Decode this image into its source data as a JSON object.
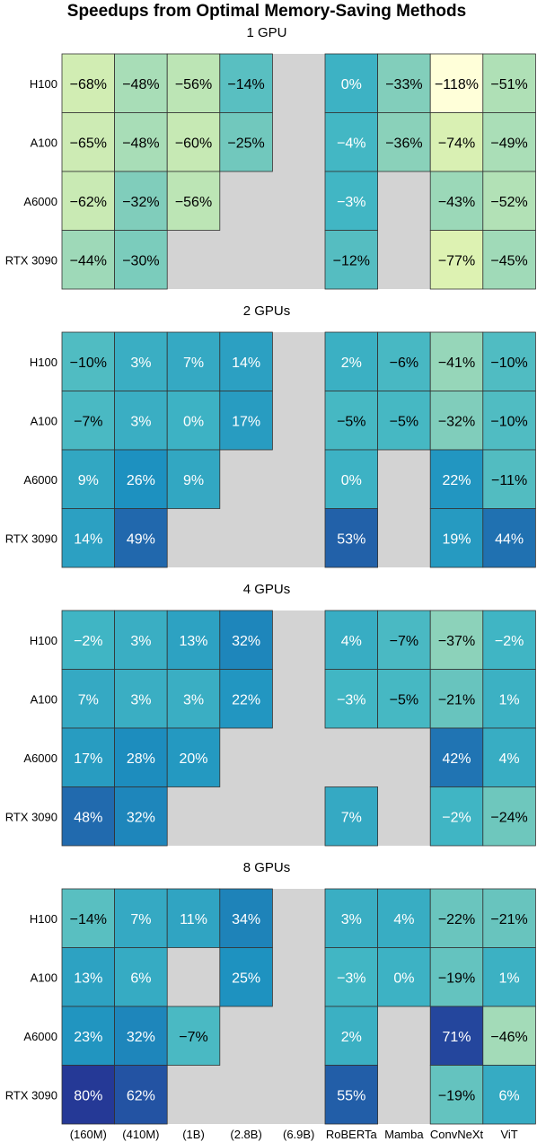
{
  "chart_data": {
    "type": "heatmap",
    "title": "Speedups from Optimal Memory-Saving Methods",
    "columns": [
      "(160M)",
      "(410M)",
      "(1B)",
      "(2.8B)",
      "(6.9B)",
      "RoBERTa",
      "Mamba",
      "ConvNeXt",
      "ViT"
    ],
    "rows": [
      "H100",
      "A100",
      "A6000",
      "RTX 3090"
    ],
    "missing_color": "#d3d3d3",
    "colormap": "YlGnBu",
    "value_range": [
      -118,
      80
    ],
    "unit": "%",
    "panels": [
      {
        "subtitle": "1 GPU",
        "values": [
          [
            -68,
            -48,
            -56,
            -14,
            null,
            0,
            -33,
            -118,
            -51
          ],
          [
            -65,
            -48,
            -60,
            -25,
            null,
            -4,
            -36,
            -74,
            -49
          ],
          [
            -62,
            -32,
            -56,
            null,
            null,
            -3,
            null,
            -43,
            -52
          ],
          [
            -44,
            -30,
            null,
            null,
            null,
            -12,
            null,
            -77,
            -45
          ]
        ]
      },
      {
        "subtitle": "2 GPUs",
        "values": [
          [
            -10,
            3,
            7,
            14,
            null,
            2,
            -6,
            -41,
            -10
          ],
          [
            -7,
            3,
            0,
            17,
            null,
            -5,
            -5,
            -32,
            -10
          ],
          [
            9,
            26,
            9,
            null,
            null,
            0,
            null,
            22,
            -11
          ],
          [
            14,
            49,
            null,
            null,
            null,
            53,
            null,
            19,
            44
          ]
        ]
      },
      {
        "subtitle": "4 GPUs",
        "values": [
          [
            -2,
            3,
            13,
            32,
            null,
            4,
            -7,
            -37,
            -2
          ],
          [
            7,
            3,
            3,
            22,
            null,
            -3,
            -5,
            -21,
            1
          ],
          [
            17,
            28,
            20,
            null,
            null,
            null,
            null,
            42,
            4
          ],
          [
            48,
            32,
            null,
            null,
            null,
            7,
            null,
            -2,
            -24
          ]
        ]
      },
      {
        "subtitle": "8 GPUs",
        "values": [
          [
            -14,
            7,
            11,
            34,
            null,
            3,
            4,
            -22,
            -21
          ],
          [
            13,
            6,
            null,
            25,
            null,
            -3,
            0,
            -19,
            1
          ],
          [
            23,
            32,
            -7,
            null,
            null,
            2,
            null,
            71,
            -46
          ],
          [
            80,
            62,
            null,
            null,
            null,
            55,
            null,
            -19,
            6
          ]
        ]
      }
    ]
  }
}
